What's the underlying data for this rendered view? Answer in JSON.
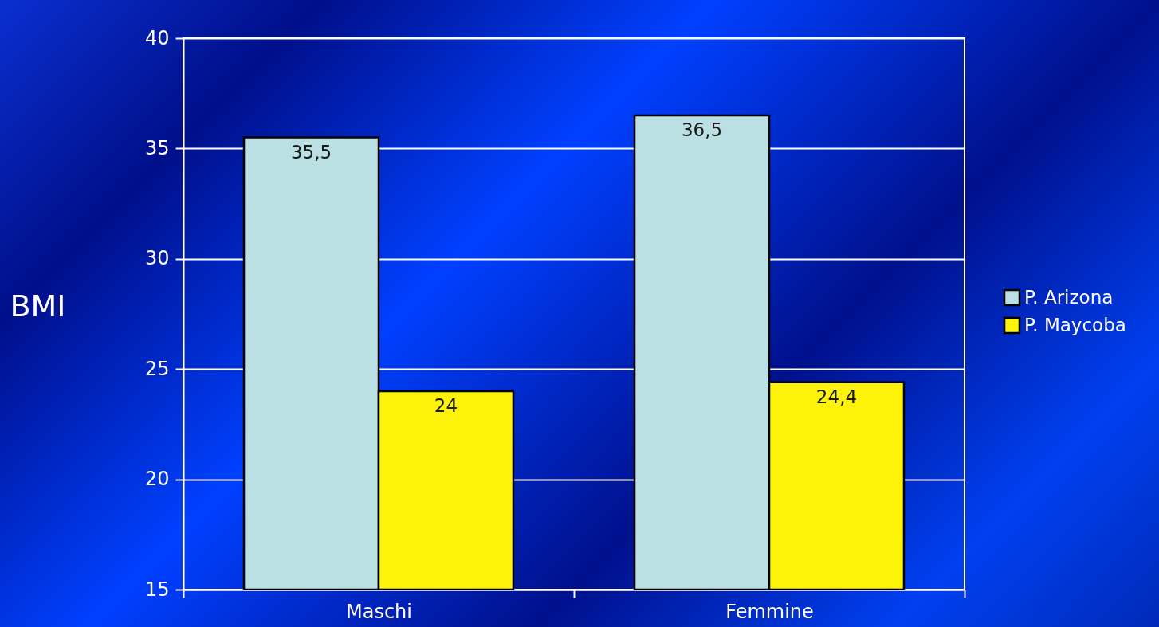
{
  "chart_data": {
    "type": "bar",
    "ylabel": "BMI",
    "categories": [
      "Maschi",
      "Femmine"
    ],
    "series": [
      {
        "name": "P. Arizona",
        "color": "#bbe0e3",
        "values": [
          35.5,
          36.5
        ],
        "value_labels": [
          "35,5",
          "36,5"
        ]
      },
      {
        "name": "P. Maycoba",
        "color": "#fdf20a",
        "values": [
          24,
          24.4
        ],
        "value_labels": [
          "24",
          "24,4"
        ]
      }
    ],
    "ylim": [
      15,
      40
    ],
    "yticks": [
      15,
      20,
      25,
      30,
      35,
      40
    ],
    "grid": "y",
    "legend": "right"
  }
}
